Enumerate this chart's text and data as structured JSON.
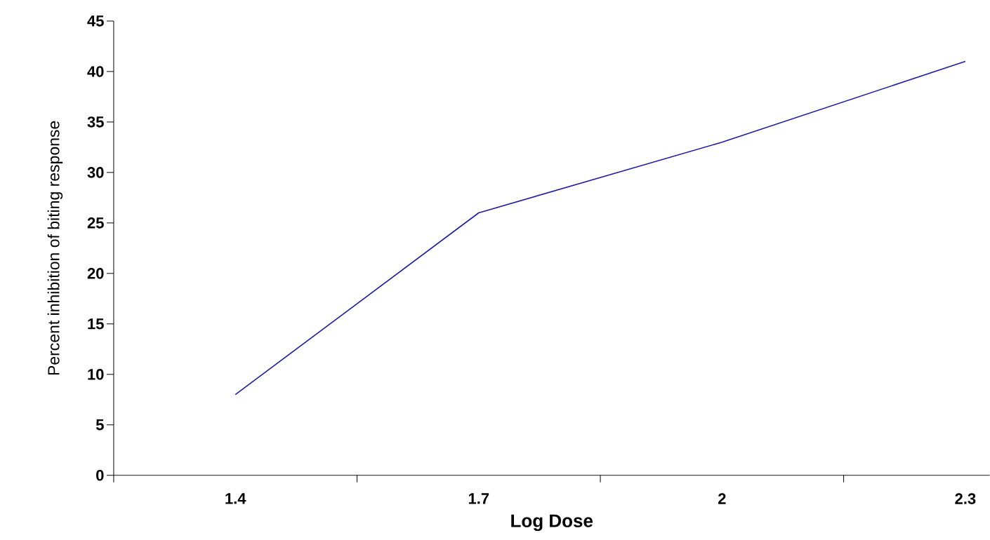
{
  "chart_data": {
    "type": "line",
    "xlabel": "Log Dose",
    "ylabel": "Percent inhibition of biting response",
    "categories": [
      "1.4",
      "1.7",
      "2",
      "2.3"
    ],
    "values": [
      8,
      26,
      33,
      41
    ],
    "color": "#1c1ca8",
    "marker": "none",
    "ylim": [
      0,
      45
    ],
    "yticks": [
      0,
      5,
      10,
      15,
      20,
      25,
      30,
      35,
      40,
      45
    ]
  }
}
